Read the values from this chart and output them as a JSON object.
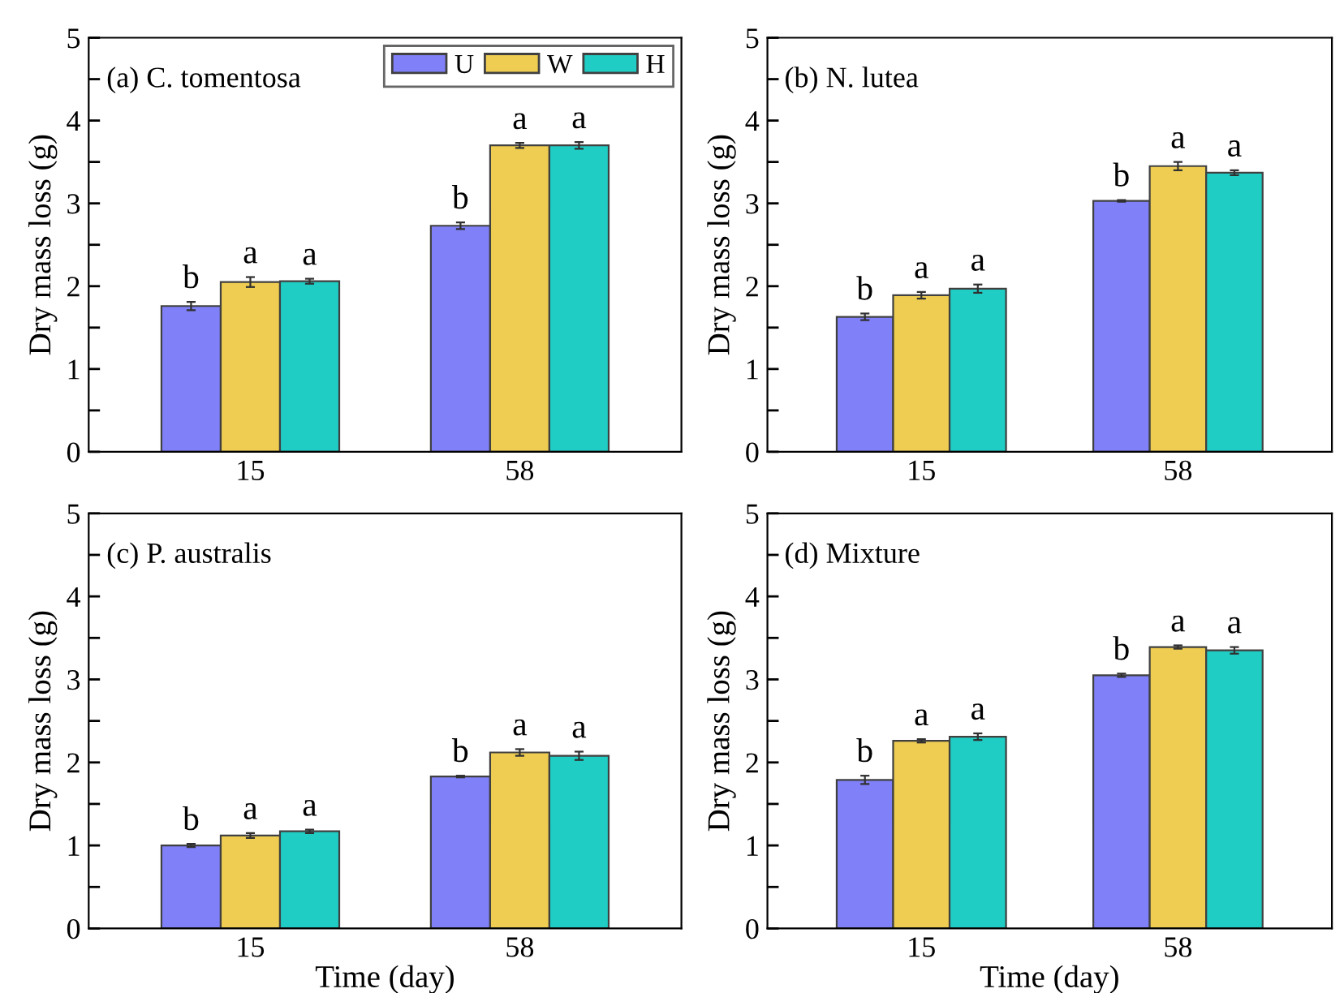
{
  "chart_data": [
    {
      "type": "bar",
      "title": "(a) C. tomentosa",
      "ylabel": "Dry mass loss (g)",
      "categories": [
        "15",
        "58"
      ],
      "ylim": [
        0,
        5
      ],
      "yticks": [
        0,
        {
          "value": 0.5,
          "label": null
        },
        1,
        {
          "value": 1.5,
          "label": null
        },
        2,
        {
          "value": 2.5,
          "label": null
        },
        3,
        {
          "value": 3.5,
          "label": null
        },
        4,
        {
          "value": 4.5,
          "label": null
        },
        5
      ],
      "grid": false,
      "legend": "top right",
      "series": [
        {
          "name": "U",
          "color": "#8080f8",
          "values": [
            1.76,
            2.73
          ],
          "errors": [
            0.05,
            0.04
          ],
          "value_labels": [
            "b",
            "b"
          ]
        },
        {
          "name": "W",
          "color": "#eecd52",
          "values": [
            2.05,
            3.7
          ],
          "errors": [
            0.06,
            0.03
          ],
          "value_labels": [
            "a",
            "a"
          ]
        },
        {
          "name": "H",
          "color": "#20cdc4",
          "values": [
            2.06,
            3.7
          ],
          "errors": [
            0.03,
            0.04
          ],
          "value_labels": [
            "a",
            "a"
          ]
        }
      ]
    },
    {
      "type": "bar",
      "title": "(b) N. lutea",
      "ylabel": "Dry mass loss (g)",
      "categories": [
        "15",
        "58"
      ],
      "ylim": [
        0,
        5
      ],
      "yticks": [
        0,
        {
          "value": 0.5,
          "label": null
        },
        1,
        {
          "value": 1.5,
          "label": null
        },
        2,
        {
          "value": 2.5,
          "label": null
        },
        3,
        {
          "value": 3.5,
          "label": null
        },
        4,
        {
          "value": 4.5,
          "label": null
        },
        5
      ],
      "grid": false,
      "series": [
        {
          "color": "#8080f8",
          "values": [
            1.63,
            3.03
          ],
          "errors": [
            0.04,
            0.01
          ],
          "value_labels": [
            "b",
            "b"
          ]
        },
        {
          "color": "#eecd52",
          "values": [
            1.89,
            3.45
          ],
          "errors": [
            0.04,
            0.05
          ],
          "value_labels": [
            "a",
            "a"
          ]
        },
        {
          "color": "#20cdc4",
          "values": [
            1.97,
            3.37
          ],
          "errors": [
            0.05,
            0.03
          ],
          "value_labels": [
            "a",
            "a"
          ]
        }
      ]
    },
    {
      "type": "bar",
      "title": "(c) P. australis",
      "ylabel": "Dry mass loss (g)",
      "xlabel": "Time (day)",
      "categories": [
        "15",
        "58"
      ],
      "ylim": [
        0,
        5
      ],
      "yticks": [
        0,
        {
          "value": 0.5,
          "label": null
        },
        1,
        {
          "value": 1.5,
          "label": null
        },
        2,
        {
          "value": 2.5,
          "label": null
        },
        3,
        {
          "value": 3.5,
          "label": null
        },
        4,
        {
          "value": 4.5,
          "label": null
        },
        5
      ],
      "grid": false,
      "series": [
        {
          "color": "#8080f8",
          "values": [
            1.0,
            1.83
          ],
          "errors": [
            0.02,
            0.01
          ],
          "value_labels": [
            "b",
            "b"
          ]
        },
        {
          "color": "#eecd52",
          "values": [
            1.12,
            2.12
          ],
          "errors": [
            0.03,
            0.04
          ],
          "value_labels": [
            "a",
            "a"
          ]
        },
        {
          "color": "#20cdc4",
          "values": [
            1.17,
            2.08
          ],
          "errors": [
            0.02,
            0.05
          ],
          "value_labels": [
            "a",
            "a"
          ]
        }
      ]
    },
    {
      "type": "bar",
      "title": "(d) Mixture",
      "ylabel": "Dry mass loss (g)",
      "xlabel": "Time (day)",
      "categories": [
        "15",
        "58"
      ],
      "ylim": [
        0,
        5
      ],
      "yticks": [
        0,
        {
          "value": 0.5,
          "label": null
        },
        1,
        {
          "value": 1.5,
          "label": null
        },
        2,
        {
          "value": 2.5,
          "label": null
        },
        3,
        {
          "value": 3.5,
          "label": null
        },
        4,
        {
          "value": 4.5,
          "label": null
        },
        5
      ],
      "grid": false,
      "series": [
        {
          "color": "#8080f8",
          "values": [
            1.79,
            3.05
          ],
          "errors": [
            0.05,
            0.02
          ],
          "value_labels": [
            "b",
            "b"
          ]
        },
        {
          "color": "#eecd52",
          "values": [
            2.26,
            3.39
          ],
          "errors": [
            0.02,
            0.02
          ],
          "value_labels": [
            "a",
            "a"
          ]
        },
        {
          "color": "#20cdc4",
          "values": [
            2.31,
            3.35
          ],
          "errors": [
            0.04,
            0.04
          ],
          "value_labels": [
            "a",
            "a"
          ]
        }
      ]
    }
  ]
}
